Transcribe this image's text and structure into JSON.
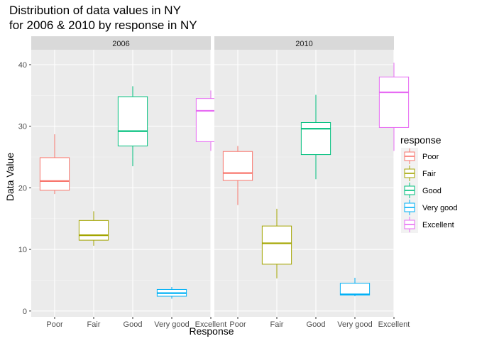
{
  "chart_data": {
    "type": "boxplot",
    "title": [
      "Distribution of data values in NY",
      "for 2006 & 2010 by response in NY"
    ],
    "xlabel": "Response",
    "ylabel": "Data Value",
    "ylim": [
      0,
      42
    ],
    "yticks": [
      0,
      10,
      20,
      30,
      40
    ],
    "categories": [
      "Poor",
      "Fair",
      "Good",
      "Very good",
      "Excellent"
    ],
    "colors": {
      "Poor": "#F8766D",
      "Fair": "#A3A500",
      "Good": "#00BF7D",
      "Very good": "#00B0F6",
      "Excellent": "#E76BF3"
    },
    "legend": {
      "title": "response",
      "position": "right",
      "entries": [
        "Poor",
        "Fair",
        "Good",
        "Very good",
        "Excellent"
      ]
    },
    "panels": [
      {
        "strip": "2006",
        "boxes": [
          {
            "category": "Poor",
            "min": 19.0,
            "q1": 19.6,
            "median": 21.1,
            "q3": 24.9,
            "max": 28.7
          },
          {
            "category": "Fair",
            "min": 10.6,
            "q1": 11.5,
            "median": 12.3,
            "q3": 14.7,
            "max": 16.2
          },
          {
            "category": "Good",
            "min": 23.5,
            "q1": 26.8,
            "median": 29.2,
            "q3": 34.8,
            "max": 36.5
          },
          {
            "category": "Very good",
            "min": 2.0,
            "q1": 2.4,
            "median": 2.9,
            "q3": 3.5,
            "max": 3.9
          },
          {
            "category": "Excellent",
            "min": 26.0,
            "q1": 27.5,
            "median": 32.5,
            "q3": 34.5,
            "max": 35.8
          }
        ]
      },
      {
        "strip": "2010",
        "boxes": [
          {
            "category": "Poor",
            "min": 17.2,
            "q1": 21.2,
            "median": 22.4,
            "q3": 25.9,
            "max": 26.8
          },
          {
            "category": "Fair",
            "min": 5.3,
            "q1": 7.6,
            "median": 11.0,
            "q3": 13.8,
            "max": 16.6
          },
          {
            "category": "Good",
            "min": 21.4,
            "q1": 25.4,
            "median": 29.6,
            "q3": 30.6,
            "max": 35.1
          },
          {
            "category": "Very good",
            "min": 2.4,
            "q1": 2.6,
            "median": 2.7,
            "q3": 4.5,
            "max": 5.4
          },
          {
            "category": "Excellent",
            "min": 26.0,
            "q1": 29.8,
            "median": 35.5,
            "q3": 38.0,
            "max": 40.3
          }
        ]
      }
    ]
  }
}
